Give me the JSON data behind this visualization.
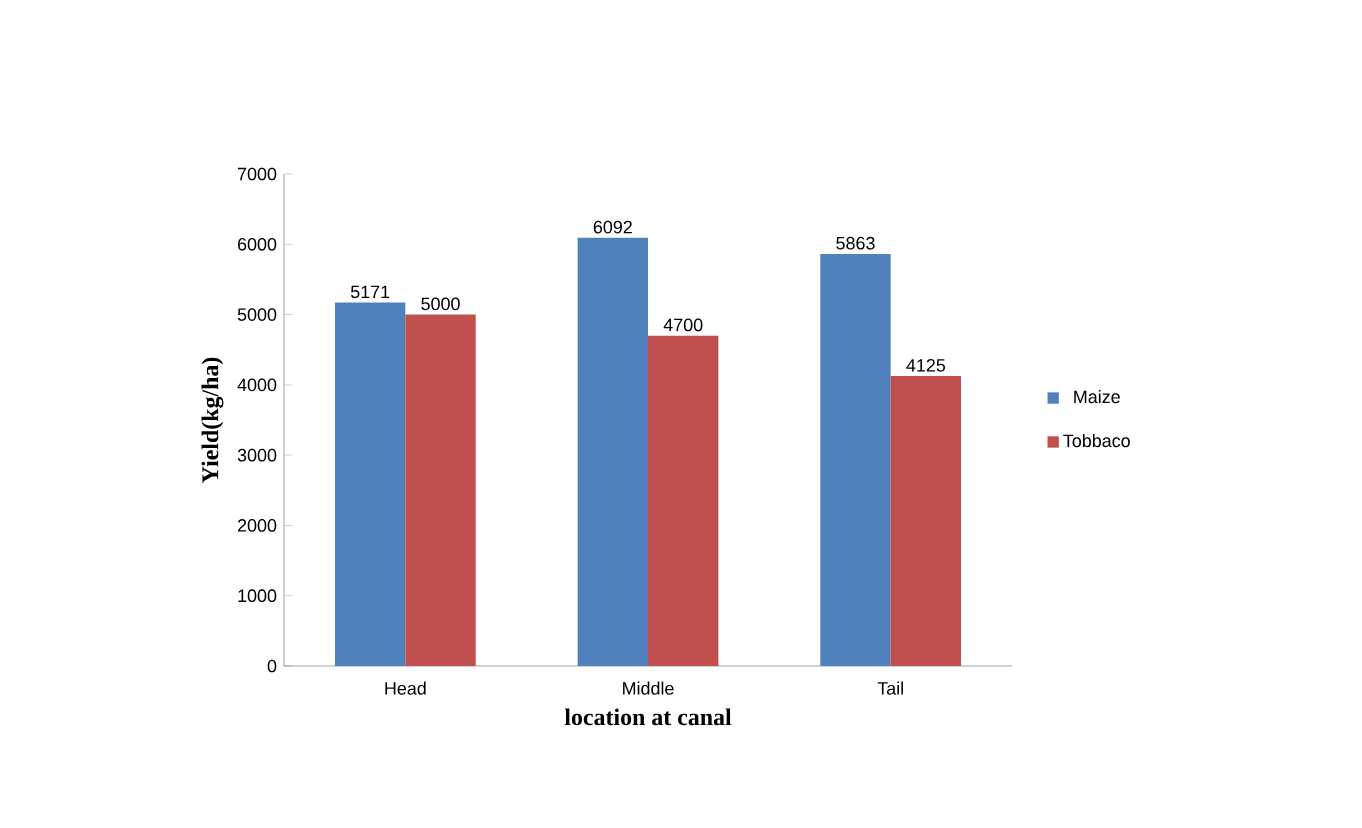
{
  "chart_data": {
    "type": "bar",
    "xlabel": "location at canal",
    "ylabel": "Yield(kg/ha)",
    "categories": [
      "Head",
      "Middle",
      "Tail"
    ],
    "series": [
      {
        "name": "Maize",
        "color": "#4f81bd",
        "values": [
          5171,
          6092,
          5863
        ]
      },
      {
        "name": "Tobbaco",
        "color": "#c0504d",
        "values": [
          5000,
          4700,
          4125
        ]
      }
    ],
    "ylim": [
      0,
      7000
    ],
    "yticks": [
      0,
      1000,
      2000,
      3000,
      4000,
      5000,
      6000,
      7000
    ],
    "data_labels": true,
    "legend": "right",
    "grid": false
  }
}
